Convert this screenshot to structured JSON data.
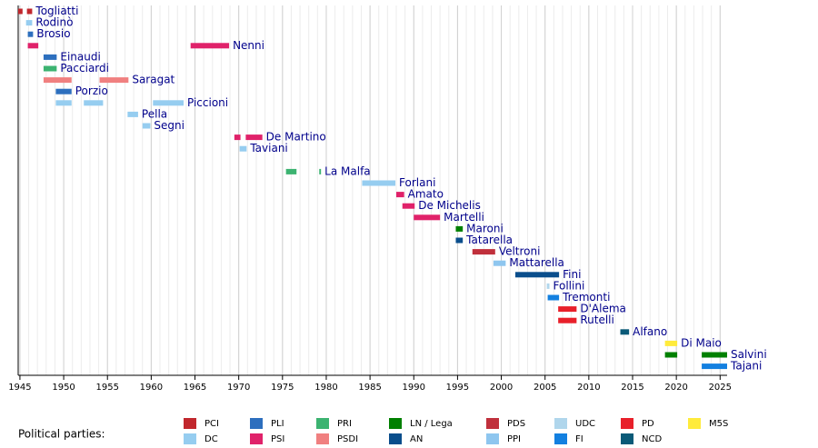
{
  "chart_data": {
    "type": "timeline",
    "xlim": [
      1944.8,
      2025.8
    ],
    "xticks": [
      1945,
      1950,
      1955,
      1960,
      1965,
      1970,
      1975,
      1980,
      1985,
      1990,
      1995,
      2000,
      2005,
      2010,
      2015,
      2020,
      2025
    ],
    "grid": true,
    "legend_title": "Political parties:",
    "parties": [
      {
        "name": "PCI",
        "color": "#c1272d"
      },
      {
        "name": "DC",
        "color": "#96cdf0"
      },
      {
        "name": "PLI",
        "color": "#2d6fbe"
      },
      {
        "name": "PSI",
        "color": "#e0226a"
      },
      {
        "name": "PRI",
        "color": "#3cb371"
      },
      {
        "name": "PSDI",
        "color": "#f08080"
      },
      {
        "name": "LN / Lega",
        "color": "#008000"
      },
      {
        "name": "AN",
        "color": "#0a4e8c"
      },
      {
        "name": "PDS",
        "color": "#c0303c"
      },
      {
        "name": "PPI",
        "color": "#8ec6ef"
      },
      {
        "name": "UDC",
        "color": "#b0d6ec"
      },
      {
        "name": "FI",
        "color": "#1380e0"
      },
      {
        "name": "PD",
        "color": "#e8202a"
      },
      {
        "name": "NCD",
        "color": "#0b5a78"
      },
      {
        "name": "M5S",
        "color": "#ffeb3b"
      }
    ],
    "rows": [
      {
        "name": "Togliatti",
        "bars": [
          {
            "party": 0,
            "start": 1944.8,
            "end": 1945.3
          },
          {
            "party": 0,
            "start": 1945.8,
            "end": 1946.4
          }
        ]
      },
      {
        "name": "Rodinò",
        "bars": [
          {
            "party": 1,
            "start": 1945.7,
            "end": 1946.4
          }
        ]
      },
      {
        "name": "Brosio",
        "bars": [
          {
            "party": 2,
            "start": 1945.9,
            "end": 1946.5
          }
        ]
      },
      {
        "name": "Nenni",
        "bars": [
          {
            "party": 3,
            "start": 1945.9,
            "end": 1947.1
          },
          {
            "party": 3,
            "start": 1964.5,
            "end": 1968.9
          }
        ]
      },
      {
        "name": "Einaudi",
        "bars": [
          {
            "party": 2,
            "start": 1947.7,
            "end": 1949.2
          }
        ]
      },
      {
        "name": "Pacciardi",
        "bars": [
          {
            "party": 4,
            "start": 1947.7,
            "end": 1949.2
          }
        ]
      },
      {
        "name": "Saragat",
        "bars": [
          {
            "party": 5,
            "start": 1947.7,
            "end": 1950.9
          },
          {
            "party": 5,
            "start": 1954.1,
            "end": 1957.4
          }
        ]
      },
      {
        "name": "Porzio",
        "bars": [
          {
            "party": 2,
            "start": 1949.1,
            "end": 1950.9
          }
        ]
      },
      {
        "name": "Piccioni",
        "bars": [
          {
            "party": 1,
            "start": 1949.1,
            "end": 1950.9
          },
          {
            "party": 1,
            "start": 1952.3,
            "end": 1954.5
          },
          {
            "party": 1,
            "start": 1960.2,
            "end": 1963.7
          }
        ]
      },
      {
        "name": "Pella",
        "bars": [
          {
            "party": 1,
            "start": 1957.3,
            "end": 1958.5
          }
        ]
      },
      {
        "name": "Segni",
        "bars": [
          {
            "party": 1,
            "start": 1959.0,
            "end": 1959.9
          }
        ]
      },
      {
        "name": "De Martino",
        "bars": [
          {
            "party": 3,
            "start": 1969.5,
            "end": 1970.2
          },
          {
            "party": 3,
            "start": 1970.8,
            "end": 1972.7
          }
        ]
      },
      {
        "name": "Taviani",
        "bars": [
          {
            "party": 1,
            "start": 1970.1,
            "end": 1970.9
          }
        ]
      },
      {
        "name": "La Malfa",
        "bars": [
          {
            "party": 4,
            "start": 1975.4,
            "end": 1976.6
          },
          {
            "party": 4,
            "start": 1979.2,
            "end": 1979.4
          }
        ]
      },
      {
        "name": "Forlani",
        "bars": [
          {
            "party": 1,
            "start": 1984.1,
            "end": 1987.9
          }
        ]
      },
      {
        "name": "Amato",
        "bars": [
          {
            "party": 3,
            "start": 1988.0,
            "end": 1988.9
          }
        ]
      },
      {
        "name": "De Michelis",
        "bars": [
          {
            "party": 3,
            "start": 1988.7,
            "end": 1990.1
          }
        ]
      },
      {
        "name": "Martelli",
        "bars": [
          {
            "party": 3,
            "start": 1990.0,
            "end": 1993.0
          }
        ]
      },
      {
        "name": "Maroni",
        "bars": [
          {
            "party": 6,
            "start": 1994.8,
            "end": 1995.6
          }
        ]
      },
      {
        "name": "Tatarella",
        "bars": [
          {
            "party": 7,
            "start": 1994.8,
            "end": 1995.6
          }
        ]
      },
      {
        "name": "Veltroni",
        "bars": [
          {
            "party": 8,
            "start": 1996.7,
            "end": 1999.3
          }
        ]
      },
      {
        "name": "Mattarella",
        "bars": [
          {
            "party": 9,
            "start": 1999.1,
            "end": 2000.5
          }
        ]
      },
      {
        "name": "Fini",
        "bars": [
          {
            "party": 7,
            "start": 2001.6,
            "end": 2006.6
          }
        ]
      },
      {
        "name": "Follini",
        "bars": [
          {
            "party": 10,
            "start": 2005.2,
            "end": 2005.5
          }
        ]
      },
      {
        "name": "Tremonti",
        "bars": [
          {
            "party": 11,
            "start": 2005.3,
            "end": 2006.6
          }
        ]
      },
      {
        "name": "D'Alema",
        "bars": [
          {
            "party": 12,
            "start": 2006.5,
            "end": 2008.6
          }
        ]
      },
      {
        "name": "Rutelli",
        "bars": [
          {
            "party": 12,
            "start": 2006.5,
            "end": 2008.6
          }
        ]
      },
      {
        "name": "Alfano",
        "bars": [
          {
            "party": 13,
            "start": 2013.6,
            "end": 2014.6
          }
        ]
      },
      {
        "name": "Di Maio",
        "bars": [
          {
            "party": 14,
            "start": 2018.7,
            "end": 2020.1
          }
        ]
      },
      {
        "name": "Salvini",
        "bars": [
          {
            "party": 6,
            "start": 2018.7,
            "end": 2020.1
          },
          {
            "party": 6,
            "start": 2022.9,
            "end": 2025.8
          }
        ]
      },
      {
        "name": "Tajani",
        "bars": [
          {
            "party": 11,
            "start": 2022.9,
            "end": 2025.8
          }
        ]
      }
    ]
  }
}
